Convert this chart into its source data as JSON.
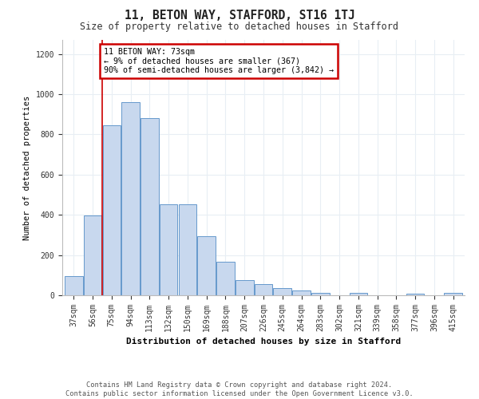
{
  "title": "11, BETON WAY, STAFFORD, ST16 1TJ",
  "subtitle": "Size of property relative to detached houses in Stafford",
  "xlabel": "Distribution of detached houses by size in Stafford",
  "ylabel": "Number of detached properties",
  "categories": [
    "37sqm",
    "56sqm",
    "75sqm",
    "94sqm",
    "113sqm",
    "132sqm",
    "150sqm",
    "169sqm",
    "188sqm",
    "207sqm",
    "226sqm",
    "245sqm",
    "264sqm",
    "283sqm",
    "302sqm",
    "321sqm",
    "339sqm",
    "358sqm",
    "377sqm",
    "396sqm",
    "415sqm"
  ],
  "values": [
    95,
    395,
    845,
    960,
    880,
    452,
    452,
    295,
    165,
    75,
    55,
    35,
    22,
    13,
    0,
    12,
    0,
    0,
    8,
    0,
    10
  ],
  "bar_color": "#c8d8ee",
  "bar_edge_color": "#6699cc",
  "annotation_text": "11 BETON WAY: 73sqm\n← 9% of detached houses are smaller (367)\n90% of semi-detached houses are larger (3,842) →",
  "annotation_box_color": "#ffffff",
  "annotation_box_edge_color": "#cc0000",
  "vline_color": "#cc0000",
  "vline_x": 1.5,
  "ylim": [
    0,
    1270
  ],
  "yticks": [
    0,
    200,
    400,
    600,
    800,
    1000,
    1200
  ],
  "footer": "Contains HM Land Registry data © Crown copyright and database right 2024.\nContains public sector information licensed under the Open Government Licence v3.0.",
  "bg_color": "#ffffff",
  "plot_bg_color": "#ffffff",
  "grid_color": "#e8eef4"
}
